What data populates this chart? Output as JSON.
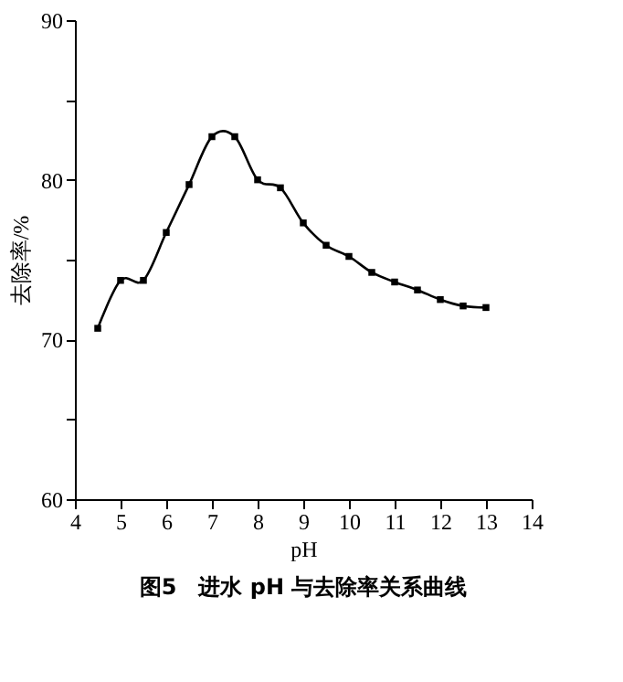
{
  "chart_data": {
    "type": "line",
    "title": "图5　进水 pH 与去除率关系曲线",
    "xlabel": "pH",
    "ylabel": "去除率/%",
    "x": [
      4.5,
      5,
      5.5,
      6,
      6.5,
      7,
      7.5,
      8,
      8.5,
      9,
      9.5,
      10,
      10.5,
      11,
      11.5,
      12,
      12.5,
      13
    ],
    "series": [
      {
        "color": "#000000",
        "values": [
          70.7,
          73.7,
          73.7,
          76.7,
          79.7,
          82.7,
          82.7,
          80.0,
          79.5,
          77.3,
          75.9,
          75.2,
          74.2,
          73.6,
          73.1,
          72.5,
          72.1,
          72.0
        ]
      }
    ],
    "xlim": [
      4,
      14
    ],
    "xticks": [
      4,
      5,
      6,
      7,
      8,
      9,
      10,
      11,
      12,
      13,
      14
    ],
    "ylim": [
      60,
      90
    ],
    "yticks": [
      60,
      {
        "value": 65,
        "label": null
      },
      70,
      {
        "value": 75,
        "label": null
      },
      80,
      {
        "value": 85,
        "label": null
      },
      90
    ],
    "grid": false,
    "marker": "square",
    "line_style": "solid"
  }
}
